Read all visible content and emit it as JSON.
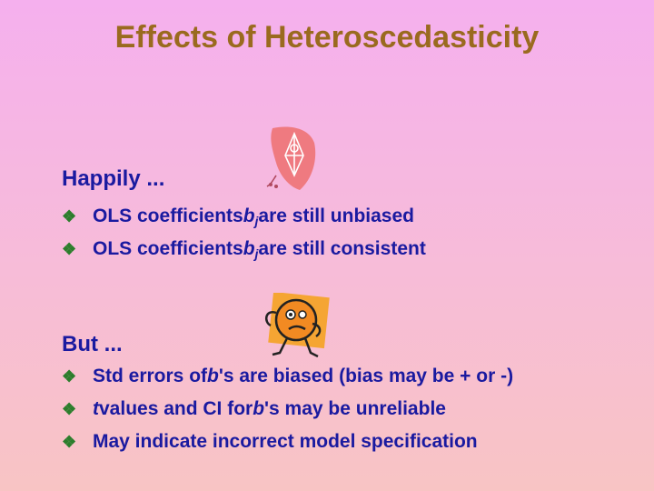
{
  "title": "Effects of Heteroscedasticity",
  "sections": [
    {
      "heading": "Happily ...",
      "bullets": [
        {
          "pre": "OLS coefficients ",
          "var": "b",
          "sub": "j",
          "post": " are still unbiased"
        },
        {
          "pre": "OLS coefficients ",
          "var": "b",
          "sub": "j",
          "post": " are still consistent"
        }
      ]
    },
    {
      "heading": "But ...",
      "bullets": [
        {
          "pre": "Std errors of ",
          "var": "b",
          "post": "'s are biased (bias may be + or -)"
        },
        {
          "pre": "",
          "var": "t",
          "post": " values and CI for ",
          "var2": "b",
          "post2": "'s may be unreliable"
        },
        {
          "pre": "May indicate incorrect model specification"
        }
      ]
    }
  ],
  "bullet_symbol": "❖",
  "colors": {
    "title": "#9a6a1f",
    "text": "#1a1aa0",
    "bullet": "#2c7d2c"
  },
  "icons": [
    "happy-kite-clipart-icon",
    "worried-face-clipart-icon"
  ]
}
